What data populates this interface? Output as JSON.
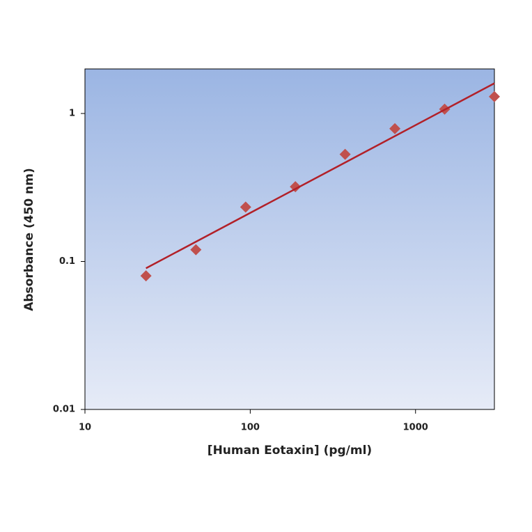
{
  "chart_data": {
    "type": "scatter",
    "xlabel": "[Human Eotaxin] (pg/ml)",
    "ylabel": "Absorbance (450 nm)",
    "xscale": "log",
    "yscale": "log",
    "xlim": [
      10,
      3000
    ],
    "ylim": [
      0.01,
      2
    ],
    "xticks": [
      10,
      100,
      1000
    ],
    "yticks": [
      0.01,
      0.1,
      1
    ],
    "series": [
      {
        "style": "marker",
        "color": "#c0504d",
        "x": [
          23.4,
          46.9,
          93.8,
          187.5,
          375,
          750,
          1500,
          3000
        ],
        "values": [
          0.08,
          0.12,
          0.233,
          0.32,
          0.53,
          0.79,
          1.07,
          1.3
        ]
      },
      {
        "style": "line",
        "color": "#b22028",
        "x": [
          23.4,
          3000
        ],
        "values": [
          0.09,
          1.6
        ]
      }
    ]
  }
}
